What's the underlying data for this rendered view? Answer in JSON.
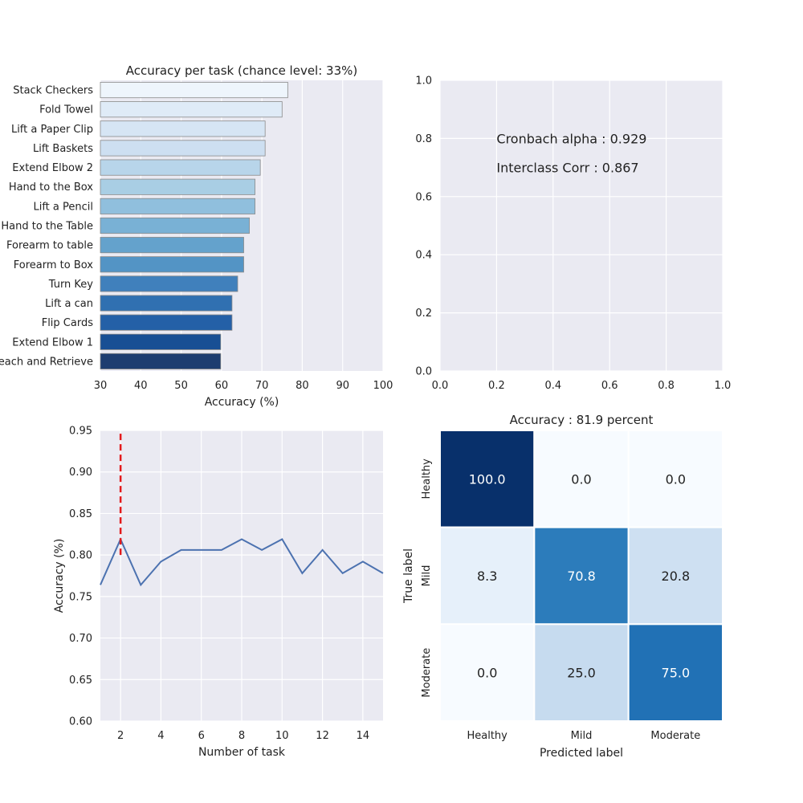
{
  "chart_data": [
    {
      "type": "bar",
      "orientation": "horizontal",
      "title": "Accuracy per task (chance level: 33%)",
      "xlabel": "Accuracy (%)",
      "ylabel": "",
      "xlim": [
        30,
        100
      ],
      "xticks": [
        30,
        40,
        50,
        60,
        70,
        80,
        90,
        100
      ],
      "categories": [
        "Stack Checkers",
        "Fold Towel",
        "Lift a Paper Clip",
        "Lift Baskets",
        "Extend Elbow 2",
        "Hand to the Box",
        "Lift a Pencil",
        "Hand to the Table",
        "Forearm to table",
        "Forearm to Box",
        "Turn Key",
        "Lift a can",
        "Flip Cards",
        "Extend Elbow 1",
        "Reach and Retrieve"
      ],
      "values": [
        76.4,
        75.0,
        70.8,
        70.8,
        69.6,
        68.3,
        68.3,
        66.9,
        65.5,
        65.5,
        64.0,
        62.6,
        62.6,
        59.8,
        59.8
      ],
      "colors": [
        "#eef5fc",
        "#dfebf7",
        "#d6e5f4",
        "#cddff1",
        "#b8d5ea",
        "#a9cee4",
        "#90bfdd",
        "#79b1d5",
        "#64a2cc",
        "#5394c5",
        "#4080bc",
        "#3070b1",
        "#2460a7",
        "#184f94",
        "#1d3d70"
      ]
    },
    {
      "type": "scatter",
      "title": "",
      "xlim": [
        0.0,
        1.0
      ],
      "ylim": [
        0.0,
        1.0
      ],
      "xticks": [
        "0.0",
        "0.2",
        "0.4",
        "0.6",
        "0.8",
        "1.0"
      ],
      "yticks": [
        "0.0",
        "0.2",
        "0.4",
        "0.6",
        "0.8",
        "1.0"
      ],
      "annotations": [
        {
          "text": "Cronbach alpha : 0.929",
          "x": 0.2,
          "y": 0.8
        },
        {
          "text": "Interclass Corr : 0.867",
          "x": 0.2,
          "y": 0.7
        }
      ]
    },
    {
      "type": "line",
      "title": "",
      "xlabel": "Number of task",
      "ylabel": "Accuracy (%)",
      "xlim": [
        1,
        15
      ],
      "ylim": [
        0.6,
        0.95
      ],
      "xticks": [
        2,
        4,
        6,
        8,
        10,
        12,
        14
      ],
      "yticks": [
        "0.60",
        "0.65",
        "0.70",
        "0.75",
        "0.80",
        "0.85",
        "0.90",
        "0.95"
      ],
      "x": [
        1,
        2,
        3,
        4,
        5,
        6,
        7,
        8,
        9,
        10,
        11,
        12,
        13,
        14,
        15
      ],
      "y": [
        0.764,
        0.819,
        0.764,
        0.792,
        0.806,
        0.806,
        0.806,
        0.819,
        0.806,
        0.819,
        0.778,
        0.806,
        0.778,
        0.792,
        0.778
      ],
      "line_color": "#4c72b0",
      "reference_line": {
        "x": 2,
        "y_from": 0.8,
        "y_to": 0.95,
        "color": "#e31a1c",
        "style": "dashed"
      }
    },
    {
      "type": "heatmap",
      "title": "Accuracy : 81.9 percent",
      "xlabel": "Predicted label",
      "ylabel": "True label",
      "x_categories": [
        "Healthy",
        "Mild",
        "Moderate"
      ],
      "y_categories": [
        "Healthy",
        "Mild",
        "Moderate"
      ],
      "values": [
        [
          100.0,
          0.0,
          0.0
        ],
        [
          8.3,
          70.8,
          20.8
        ],
        [
          0.0,
          25.0,
          75.0
        ]
      ],
      "labels": [
        [
          "100.0",
          "0.0",
          "0.0"
        ],
        [
          "8.3",
          "70.8",
          "20.8"
        ],
        [
          "0.0",
          "25.0",
          "75.0"
        ]
      ],
      "colormap": "Blues"
    }
  ]
}
